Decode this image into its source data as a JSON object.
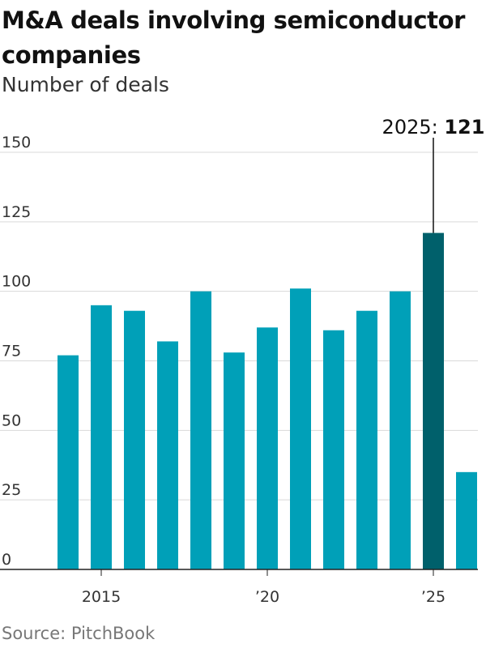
{
  "title": "M&A deals involving semiconductor companies",
  "subtitle": "Number of deals",
  "source": "Source: PitchBook",
  "colors": {
    "bar": "#00a0b8",
    "highlight": "#00606b",
    "grid": "#d9d9d9",
    "axis": "#222222"
  },
  "chart_data": {
    "type": "bar",
    "x": [
      2014,
      2015,
      2016,
      2017,
      2018,
      2019,
      2020,
      2021,
      2022,
      2023,
      2024,
      2025,
      2026
    ],
    "values": [
      77,
      95,
      93,
      82,
      100,
      78,
      87,
      101,
      86,
      93,
      100,
      121,
      35
    ],
    "highlight_index": 11,
    "ylim": [
      0,
      150
    ],
    "yticks": [
      0,
      25,
      50,
      75,
      100,
      125,
      150
    ],
    "xticks": [
      {
        "x": 2015,
        "label": "2015"
      },
      {
        "x": 2020,
        "label": "’20"
      },
      {
        "x": 2025,
        "label": "’25"
      }
    ],
    "annotation": {
      "x": 2025,
      "label": "2025:",
      "value": "121"
    },
    "grid": true
  }
}
